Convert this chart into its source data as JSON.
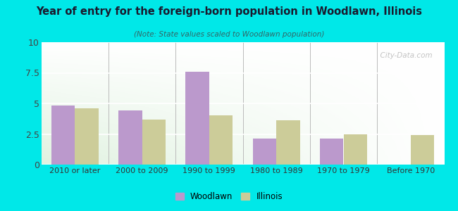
{
  "title": "Year of entry for the foreign-born population in Woodlawn, Illinois",
  "subtitle": "(Note: State values scaled to Woodlawn population)",
  "categories": [
    "2010 or later",
    "2000 to 2009",
    "1990 to 1999",
    "1980 to 1989",
    "1970 to 1979",
    "Before 1970"
  ],
  "woodlawn_values": [
    4.8,
    4.4,
    7.6,
    2.1,
    2.1,
    0.0
  ],
  "illinois_values": [
    4.6,
    3.7,
    4.0,
    3.6,
    2.5,
    2.4
  ],
  "woodlawn_color": "#bb99cc",
  "illinois_color": "#cccc99",
  "background_outer": "#00e8e8",
  "ylim": [
    0,
    10
  ],
  "yticks": [
    0,
    2.5,
    5,
    7.5,
    10
  ],
  "bar_width": 0.35,
  "watermark": "  City-Data.com",
  "legend_woodlawn": "Woodlawn",
  "legend_illinois": "Illinois",
  "title_color": "#1a1a2e",
  "subtitle_color": "#336666"
}
